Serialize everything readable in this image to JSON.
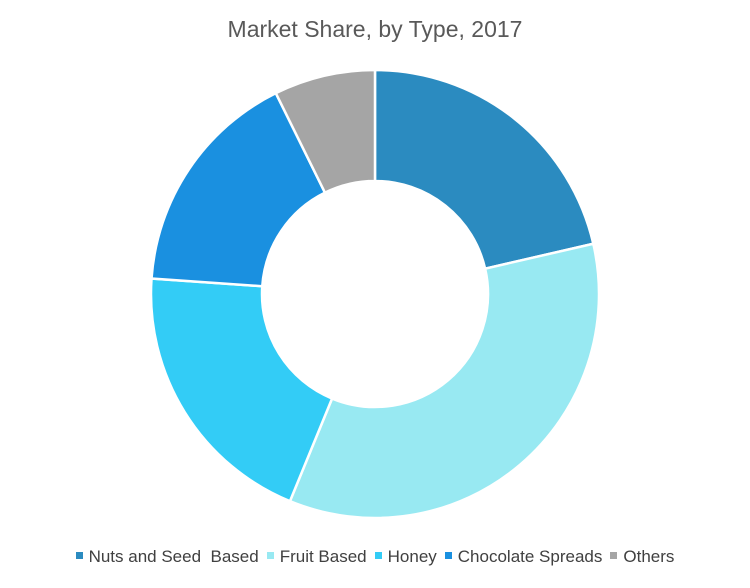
{
  "chart_data": {
    "type": "pie",
    "variant": "donut",
    "title": "Market Share, by Type, 2017",
    "categories": [
      "Nuts and Seed  Based",
      "Fruit Based",
      "Honey",
      "Chocolate Spreads",
      "Others"
    ],
    "values": [
      21.4,
      34.8,
      19.9,
      16.6,
      7.3
    ],
    "colors": [
      "#2b8bc0",
      "#98e9f2",
      "#33ccf6",
      "#1a90e0",
      "#a5a5a5"
    ],
    "legend_position": "bottom"
  }
}
